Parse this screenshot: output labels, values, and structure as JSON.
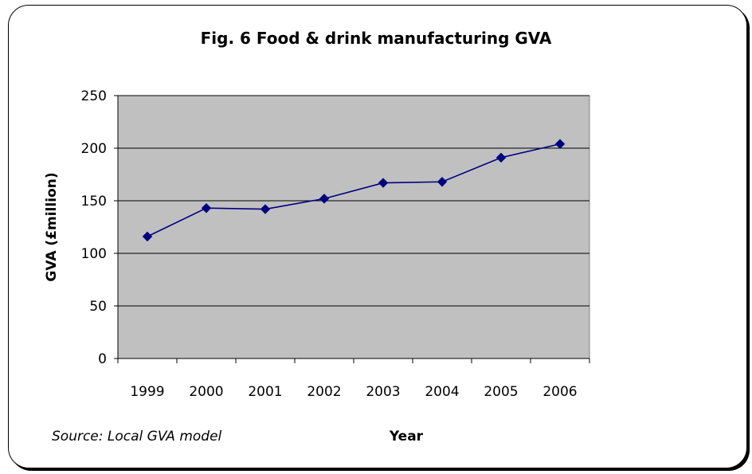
{
  "chart_data": {
    "type": "line",
    "title": "Fig. 6  Food & drink manufacturing GVA",
    "xlabel": "Year",
    "ylabel": "GVA  (£million)",
    "source": "Source: Local GVA model",
    "categories": [
      "1999",
      "2000",
      "2001",
      "2002",
      "2003",
      "2004",
      "2005",
      "2006"
    ],
    "series": [
      {
        "values": [
          116,
          143,
          142,
          152,
          167,
          168,
          191,
          204
        ]
      }
    ],
    "ylim": [
      0,
      250
    ],
    "yticks": [
      "0",
      "50",
      "100",
      "150",
      "200",
      "250"
    ],
    "grid": true,
    "legend": "none",
    "colors": {
      "line": "#000080",
      "marker": "#000080",
      "plot_bg": "#c0c0c0"
    }
  }
}
